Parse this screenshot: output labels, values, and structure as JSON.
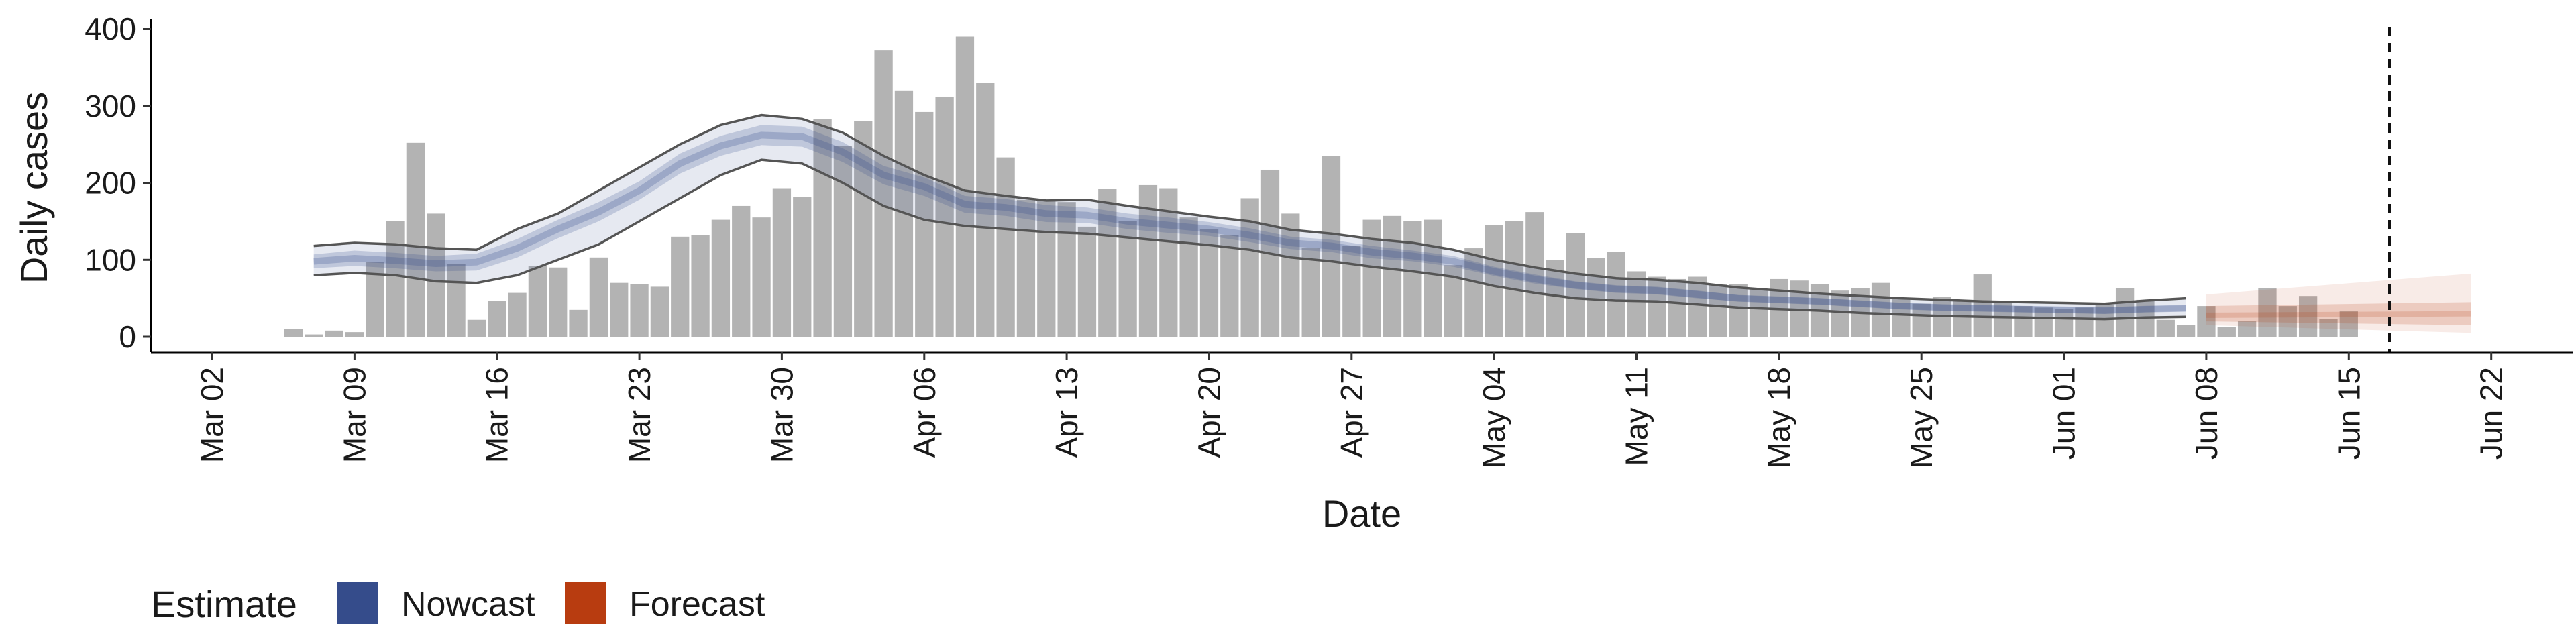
{
  "chart_data": {
    "type": "bar",
    "xlabel": "Date",
    "ylabel": "Daily cases",
    "ylim": [
      0,
      400
    ],
    "xlim": [
      "2020-02-28",
      "2020-06-26"
    ],
    "yticks": [
      0,
      100,
      200,
      300,
      400
    ],
    "xticks": [
      {
        "date": "2020-03-02",
        "label": "Mar 02"
      },
      {
        "date": "2020-03-09",
        "label": "Mar 09"
      },
      {
        "date": "2020-03-16",
        "label": "Mar 16"
      },
      {
        "date": "2020-03-23",
        "label": "Mar 23"
      },
      {
        "date": "2020-03-30",
        "label": "Mar 30"
      },
      {
        "date": "2020-04-06",
        "label": "Apr 06"
      },
      {
        "date": "2020-04-13",
        "label": "Apr 13"
      },
      {
        "date": "2020-04-20",
        "label": "Apr 20"
      },
      {
        "date": "2020-04-27",
        "label": "Apr 27"
      },
      {
        "date": "2020-05-04",
        "label": "May 04"
      },
      {
        "date": "2020-05-11",
        "label": "May 11"
      },
      {
        "date": "2020-05-18",
        "label": "May 18"
      },
      {
        "date": "2020-05-25",
        "label": "May 25"
      },
      {
        "date": "2020-06-01",
        "label": "Jun 01"
      },
      {
        "date": "2020-06-08",
        "label": "Jun 08"
      },
      {
        "date": "2020-06-15",
        "label": "Jun 15"
      },
      {
        "date": "2020-06-22",
        "label": "Jun 22"
      }
    ],
    "bars": {
      "start_date": "2020-03-06",
      "values": [
        10,
        3,
        8,
        6,
        97,
        150,
        252,
        160,
        95,
        22,
        47,
        57,
        92,
        90,
        35,
        103,
        70,
        68,
        65,
        130,
        132,
        152,
        170,
        155,
        193,
        182,
        283,
        248,
        280,
        372,
        320,
        292,
        312,
        390,
        330,
        233,
        178,
        178,
        175,
        143,
        192,
        150,
        197,
        193,
        155,
        140,
        132,
        180,
        217,
        160,
        115,
        235,
        118,
        152,
        157,
        150,
        152,
        93,
        115,
        145,
        150,
        162,
        100,
        135,
        102,
        110,
        85,
        78,
        75,
        78,
        68,
        68,
        62,
        75,
        73,
        68,
        60,
        63,
        70,
        50,
        43,
        52,
        48,
        81,
        45,
        40,
        38,
        36,
        38,
        42,
        63,
        48,
        22,
        15,
        40,
        13,
        20,
        63,
        40,
        53,
        23,
        33
      ]
    },
    "nowcast": {
      "start_date": "2020-03-07",
      "end_date": "2020-06-07",
      "median": [
        [
          0,
          98
        ],
        [
          2,
          102
        ],
        [
          4,
          99
        ],
        [
          6,
          95
        ],
        [
          8,
          97
        ],
        [
          10,
          115
        ],
        [
          12,
          140
        ],
        [
          14,
          162
        ],
        [
          16,
          190
        ],
        [
          18,
          225
        ],
        [
          20,
          248
        ],
        [
          22,
          262
        ],
        [
          24,
          260
        ],
        [
          26,
          240
        ],
        [
          28,
          210
        ],
        [
          30,
          195
        ],
        [
          32,
          172
        ],
        [
          34,
          168
        ],
        [
          36,
          160
        ],
        [
          38,
          158
        ],
        [
          40,
          150
        ],
        [
          42,
          145
        ],
        [
          44,
          140
        ],
        [
          46,
          132
        ],
        [
          48,
          122
        ],
        [
          50,
          118
        ],
        [
          52,
          110
        ],
        [
          54,
          105
        ],
        [
          56,
          98
        ],
        [
          58,
          85
        ],
        [
          60,
          75
        ],
        [
          62,
          67
        ],
        [
          64,
          62
        ],
        [
          66,
          60
        ],
        [
          68,
          55
        ],
        [
          70,
          50
        ],
        [
          72,
          48
        ],
        [
          74,
          46
        ],
        [
          76,
          43
        ],
        [
          78,
          40
        ],
        [
          80,
          38
        ],
        [
          82,
          37
        ],
        [
          84,
          36
        ],
        [
          86,
          35
        ],
        [
          88,
          34
        ],
        [
          90,
          36
        ],
        [
          92,
          37
        ]
      ],
      "inner_band": [
        [
          0,
          89,
          107
        ],
        [
          2,
          92,
          112
        ],
        [
          4,
          89,
          109
        ],
        [
          6,
          85,
          105
        ],
        [
          8,
          86,
          108
        ],
        [
          10,
          103,
          127
        ],
        [
          12,
          128,
          152
        ],
        [
          14,
          150,
          175
        ],
        [
          16,
          178,
          202
        ],
        [
          18,
          212,
          238
        ],
        [
          20,
          235,
          261
        ],
        [
          22,
          249,
          275
        ],
        [
          24,
          247,
          273
        ],
        [
          26,
          227,
          253
        ],
        [
          28,
          198,
          222
        ],
        [
          30,
          183,
          207
        ],
        [
          32,
          161,
          183
        ],
        [
          34,
          157,
          179
        ],
        [
          36,
          149,
          171
        ],
        [
          38,
          148,
          168
        ],
        [
          40,
          140,
          160
        ],
        [
          42,
          135,
          155
        ],
        [
          44,
          131,
          149
        ],
        [
          46,
          123,
          141
        ],
        [
          48,
          114,
          130
        ],
        [
          50,
          110,
          126
        ],
        [
          52,
          102,
          118
        ],
        [
          54,
          98,
          112
        ],
        [
          56,
          91,
          105
        ],
        [
          58,
          79,
          91
        ],
        [
          60,
          69,
          81
        ],
        [
          62,
          62,
          72
        ],
        [
          64,
          57,
          67
        ],
        [
          66,
          55,
          65
        ],
        [
          68,
          50,
          60
        ],
        [
          70,
          46,
          54
        ],
        [
          72,
          44,
          52
        ],
        [
          74,
          42,
          50
        ],
        [
          76,
          39,
          47
        ],
        [
          78,
          36,
          44
        ],
        [
          80,
          34,
          42
        ],
        [
          82,
          33,
          41
        ],
        [
          84,
          32,
          40
        ],
        [
          86,
          31,
          39
        ],
        [
          88,
          30,
          38
        ],
        [
          90,
          32,
          40
        ],
        [
          92,
          33,
          41
        ]
      ],
      "outer_band": [
        [
          0,
          80,
          118
        ],
        [
          2,
          83,
          122
        ],
        [
          4,
          80,
          120
        ],
        [
          6,
          72,
          115
        ],
        [
          8,
          70,
          113
        ],
        [
          10,
          80,
          140
        ],
        [
          12,
          100,
          160
        ],
        [
          14,
          120,
          190
        ],
        [
          16,
          150,
          220
        ],
        [
          18,
          180,
          250
        ],
        [
          20,
          210,
          275
        ],
        [
          22,
          230,
          288
        ],
        [
          24,
          225,
          283
        ],
        [
          26,
          200,
          265
        ],
        [
          28,
          170,
          235
        ],
        [
          30,
          152,
          210
        ],
        [
          32,
          144,
          190
        ],
        [
          34,
          140,
          183
        ],
        [
          36,
          136,
          177
        ],
        [
          38,
          134,
          178
        ],
        [
          40,
          129,
          170
        ],
        [
          42,
          124,
          163
        ],
        [
          44,
          119,
          156
        ],
        [
          46,
          113,
          150
        ],
        [
          48,
          103,
          139
        ],
        [
          50,
          98,
          134
        ],
        [
          52,
          91,
          127
        ],
        [
          54,
          85,
          122
        ],
        [
          56,
          78,
          113
        ],
        [
          58,
          66,
          100
        ],
        [
          60,
          57,
          90
        ],
        [
          62,
          50,
          82
        ],
        [
          64,
          47,
          76
        ],
        [
          66,
          46,
          74
        ],
        [
          68,
          42,
          70
        ],
        [
          70,
          38,
          64
        ],
        [
          72,
          36,
          60
        ],
        [
          74,
          34,
          56
        ],
        [
          76,
          31,
          53
        ],
        [
          78,
          29,
          50
        ],
        [
          80,
          27,
          48
        ],
        [
          82,
          26,
          46
        ],
        [
          84,
          25,
          45
        ],
        [
          86,
          24,
          44
        ],
        [
          88,
          23,
          43
        ],
        [
          90,
          25,
          47
        ],
        [
          92,
          26,
          50
        ]
      ]
    },
    "forecast": {
      "start_date": "2020-06-08",
      "end_date": "2020-06-21",
      "median": [
        [
          0,
          28
        ],
        [
          13,
          30
        ]
      ],
      "inner_band": [
        [
          0,
          20,
          40
        ],
        [
          13,
          15,
          45
        ]
      ],
      "outer_band": [
        [
          0,
          15,
          55
        ],
        [
          13,
          5,
          82
        ]
      ]
    },
    "vline_date": "2020-06-17",
    "legend": {
      "title": "Estimate",
      "position": "bottom-left",
      "items": [
        {
          "label": "Nowcast",
          "color": "#354C8B"
        },
        {
          "label": "Forecast",
          "color": "#B83C10"
        }
      ]
    },
    "colors": {
      "bars": "#b3b3b3",
      "nowcast": "#354C8B",
      "forecast": "#B83C10",
      "outer_line": "#555555"
    },
    "grid": false
  }
}
